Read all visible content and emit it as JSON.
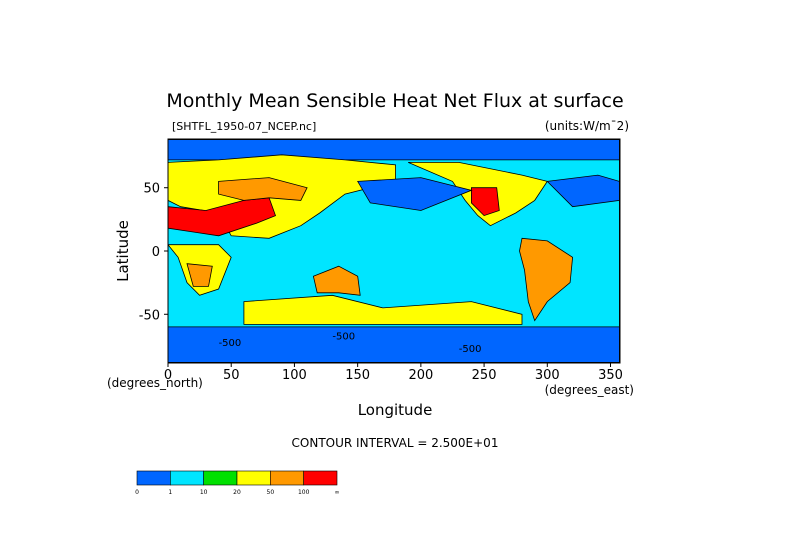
{
  "chart_data": {
    "type": "heatmap",
    "title": "Monthly Mean Sensible Heat Net Flux at surface",
    "source_file": "[SHTFL_1950-07_NCEP.nc]",
    "units": "(units:W/m^2)",
    "xlabel": "Longitude",
    "ylabel": "Latitude",
    "x_units": "(degrees_east)",
    "y_units": "(degrees_north)",
    "xlim": [
      0,
      357.5
    ],
    "ylim": [
      -88.5,
      88.5
    ],
    "x_ticks": [
      0,
      50,
      100,
      150,
      200,
      250,
      300,
      350
    ],
    "y_ticks": [
      50,
      0,
      -50
    ],
    "contour_interval": "CONTOUR INTERVAL = 2.500E+01",
    "contour_labels": [
      "-500",
      "-500",
      "-500"
    ],
    "legend": {
      "boundaries": [
        "0",
        "1",
        "10",
        "20",
        "50",
        "100",
        "∞"
      ],
      "colors": [
        "#0066ff",
        "#00e5ff",
        "#00e000",
        "#ffff00",
        "#ff9900",
        "#ff0000"
      ]
    },
    "regions": [
      {
        "label": "ocean-background",
        "level": 1,
        "points": [
          [
            0,
            88
          ],
          [
            357,
            88
          ],
          [
            357,
            -88
          ],
          [
            0,
            -88
          ]
        ]
      },
      {
        "label": "southern-ocean",
        "level": 0,
        "points": [
          [
            0,
            -60
          ],
          [
            357,
            -60
          ],
          [
            357,
            -88
          ],
          [
            0,
            -88
          ]
        ]
      },
      {
        "label": "arctic",
        "level": 0,
        "points": [
          [
            0,
            88
          ],
          [
            357,
            88
          ],
          [
            357,
            72
          ],
          [
            0,
            72
          ]
        ]
      },
      {
        "label": "eurasia",
        "level": 3,
        "points": [
          [
            0,
            70
          ],
          [
            40,
            72
          ],
          [
            90,
            76
          ],
          [
            140,
            72
          ],
          [
            180,
            68
          ],
          [
            180,
            55
          ],
          [
            140,
            45
          ],
          [
            120,
            30
          ],
          [
            105,
            20
          ],
          [
            80,
            10
          ],
          [
            50,
            12
          ],
          [
            40,
            30
          ],
          [
            10,
            35
          ],
          [
            0,
            40
          ]
        ]
      },
      {
        "label": "sahara-arabia",
        "level": 5,
        "points": [
          [
            0,
            35
          ],
          [
            30,
            32
          ],
          [
            60,
            40
          ],
          [
            80,
            42
          ],
          [
            85,
            28
          ],
          [
            70,
            22
          ],
          [
            40,
            12
          ],
          [
            20,
            15
          ],
          [
            0,
            18
          ]
        ]
      },
      {
        "label": "central-asia",
        "level": 4,
        "points": [
          [
            40,
            55
          ],
          [
            80,
            58
          ],
          [
            110,
            50
          ],
          [
            105,
            40
          ],
          [
            80,
            42
          ],
          [
            60,
            40
          ],
          [
            40,
            45
          ]
        ]
      },
      {
        "label": "africa-south",
        "level": 3,
        "points": [
          [
            0,
            5
          ],
          [
            40,
            5
          ],
          [
            50,
            -5
          ],
          [
            40,
            -30
          ],
          [
            25,
            -35
          ],
          [
            15,
            -25
          ],
          [
            8,
            -5
          ]
        ]
      },
      {
        "label": "south-africa-hot",
        "level": 4,
        "points": [
          [
            15,
            -10
          ],
          [
            35,
            -12
          ],
          [
            32,
            -28
          ],
          [
            20,
            -28
          ]
        ]
      },
      {
        "label": "north-america",
        "level": 3,
        "points": [
          [
            190,
            70
          ],
          [
            230,
            70
          ],
          [
            280,
            60
          ],
          [
            300,
            55
          ],
          [
            290,
            40
          ],
          [
            275,
            30
          ],
          [
            255,
            20
          ],
          [
            245,
            28
          ],
          [
            235,
            40
          ],
          [
            225,
            55
          ]
        ]
      },
      {
        "label": "usa-west-hot",
        "level": 5,
        "points": [
          [
            240,
            50
          ],
          [
            260,
            50
          ],
          [
            262,
            32
          ],
          [
            250,
            28
          ],
          [
            240,
            38
          ]
        ]
      },
      {
        "label": "south-america",
        "level": 4,
        "points": [
          [
            280,
            10
          ],
          [
            300,
            8
          ],
          [
            320,
            -5
          ],
          [
            318,
            -25
          ],
          [
            300,
            -40
          ],
          [
            290,
            -55
          ],
          [
            285,
            -40
          ],
          [
            282,
            -15
          ],
          [
            278,
            0
          ]
        ]
      },
      {
        "label": "australia",
        "level": 4,
        "points": [
          [
            115,
            -20
          ],
          [
            135,
            -12
          ],
          [
            150,
            -20
          ],
          [
            152,
            -35
          ],
          [
            135,
            -33
          ],
          [
            118,
            -33
          ]
        ]
      },
      {
        "label": "south-indian-yellow",
        "level": 3,
        "points": [
          [
            60,
            -40
          ],
          [
            130,
            -35
          ],
          [
            170,
            -45
          ],
          [
            240,
            -40
          ],
          [
            280,
            -50
          ],
          [
            280,
            -58
          ],
          [
            60,
            -58
          ]
        ]
      },
      {
        "label": "north-pacific-blue",
        "level": 0,
        "points": [
          [
            150,
            55
          ],
          [
            200,
            58
          ],
          [
            240,
            48
          ],
          [
            200,
            32
          ],
          [
            160,
            38
          ]
        ]
      },
      {
        "label": "north-atlantic-blue",
        "level": 0,
        "points": [
          [
            300,
            55
          ],
          [
            340,
            60
          ],
          [
            357,
            55
          ],
          [
            357,
            40
          ],
          [
            320,
            35
          ]
        ]
      }
    ]
  }
}
